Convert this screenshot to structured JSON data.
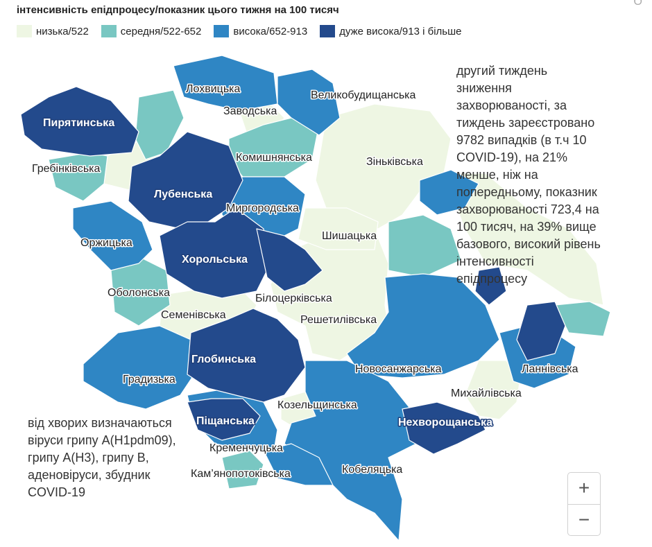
{
  "header": {
    "title": "інтенсивність епідпроцесу/показник цього тижня на 100 тисяч",
    "corner_glyph": "O"
  },
  "legend": {
    "items": [
      {
        "label": "низька/522",
        "color": "#eef6e3"
      },
      {
        "label": "середня/522-652",
        "color": "#79c7c2"
      },
      {
        "label": "висока/652-913",
        "color": "#2f86c4"
      },
      {
        "label": "дуже висока/913 і більше",
        "color": "#234a8c"
      }
    ]
  },
  "map": {
    "regions": [
      {
        "name": "Лохвицька",
        "level": "висока"
      },
      {
        "name": "Заводська",
        "level": "низька"
      },
      {
        "name": "Великобудищанська",
        "level": "висока"
      },
      {
        "name": "Пирятинська",
        "level": "дуже висока"
      },
      {
        "name": "Гребінківська",
        "level": "середня"
      },
      {
        "name": "Комишнянська",
        "level": "середня"
      },
      {
        "name": "Зіньківська",
        "level": "низька"
      },
      {
        "name": "Лубенська",
        "level": "дуже висока"
      },
      {
        "name": "Миргородська",
        "level": "висока"
      },
      {
        "name": "Оржицька",
        "level": "висока"
      },
      {
        "name": "Шишацька",
        "level": "низька"
      },
      {
        "name": "Хорольська",
        "level": "дуже висока"
      },
      {
        "name": "Оболонська",
        "level": "середня"
      },
      {
        "name": "Білоцерківська",
        "level": "дуже висока"
      },
      {
        "name": "Семенівська",
        "level": "низька"
      },
      {
        "name": "Решетилівська",
        "level": "низька"
      },
      {
        "name": "Глобинська",
        "level": "дуже висока"
      },
      {
        "name": "Новосанжарська",
        "level": "висока"
      },
      {
        "name": "Ланнівська",
        "level": "дуже висока"
      },
      {
        "name": "Градизька",
        "level": "висока"
      },
      {
        "name": "Михайлівська",
        "level": "низька"
      },
      {
        "name": "Козельщинська",
        "level": "низька"
      },
      {
        "name": "Піщанська",
        "level": "дуже висока"
      },
      {
        "name": "Нехворощанська",
        "level": "дуже висока"
      },
      {
        "name": "Кременчуцька",
        "level": "висока"
      },
      {
        "name": "Кам’янопотоківська",
        "level": "середня"
      },
      {
        "name": "Кобеляцька",
        "level": "висока"
      }
    ]
  },
  "notes": {
    "right": "другий тиждень зниження захворюваності, за тиждень зареєстровано 9782 випадків (в т.ч 10 COVID-19), на 21% менше, ніж на попередньому, показник захворюваності 723,4 на 100 тисяч, на 39% вище базового, високий рівень інтенсивності епідпроцесу",
    "left": "від хворих визначаються віруси грипу А(Н1pdm09), грипу А(Н3), грипу В, аденовіруси, збудник COVID-19"
  },
  "zoom": {
    "in_label": "+",
    "out_label": "−"
  }
}
